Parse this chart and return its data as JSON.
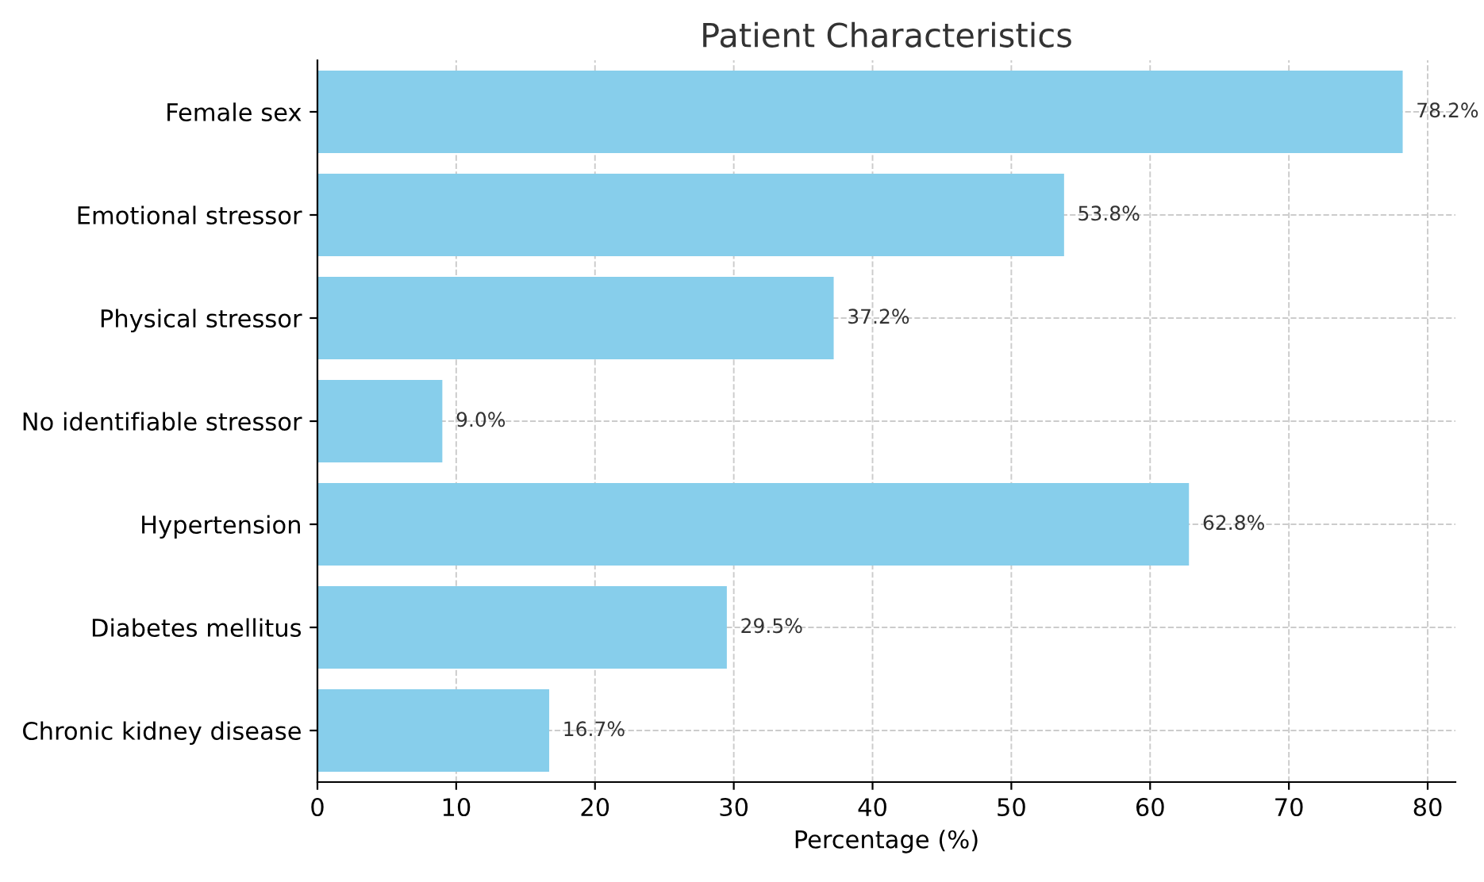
{
  "chart_data": {
    "type": "bar",
    "orientation": "horizontal",
    "title": "Patient Characteristics",
    "xlabel": "Percentage (%)",
    "categories": [
      "Female sex",
      "Emotional stressor",
      "Physical stressor",
      "No identifiable stressor",
      "Hypertension",
      "Diabetes mellitus",
      "Chronic kidney disease"
    ],
    "values": [
      78.2,
      53.8,
      37.2,
      9.0,
      62.8,
      29.5,
      16.7
    ],
    "value_labels": [
      "78.2%",
      "53.8%",
      "37.2%",
      "9.0%",
      "62.8%",
      "29.5%",
      "16.7%"
    ],
    "color": "#87ceeb",
    "xlim": [
      0,
      82
    ],
    "xticks": [
      0,
      10,
      20,
      30,
      40,
      50,
      60,
      70,
      80
    ],
    "grid": true
  }
}
